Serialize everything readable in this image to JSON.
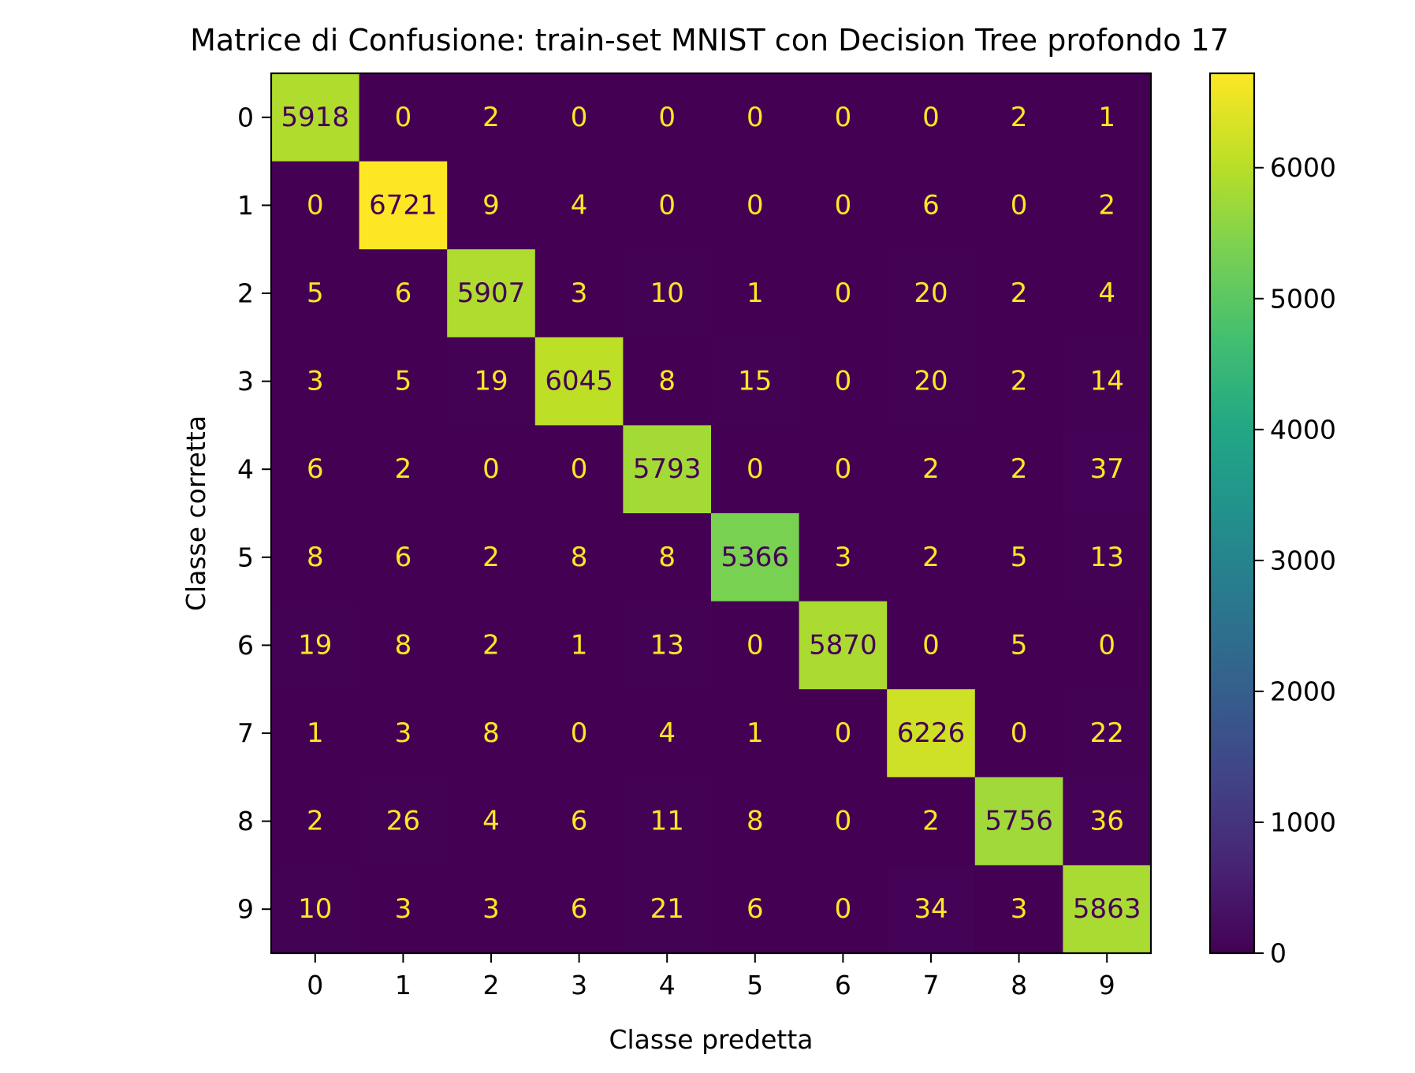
{
  "chart_data": {
    "type": "heatmap",
    "title": "Matrice di Confusione: train-set MNIST con Decision Tree profondo 17",
    "xlabel": "Classe predetta",
    "ylabel": "Classe corretta",
    "x_categories": [
      "0",
      "1",
      "2",
      "3",
      "4",
      "5",
      "6",
      "7",
      "8",
      "9"
    ],
    "y_categories": [
      "0",
      "1",
      "2",
      "3",
      "4",
      "5",
      "6",
      "7",
      "8",
      "9"
    ],
    "values": [
      [
        5918,
        0,
        2,
        0,
        0,
        0,
        0,
        0,
        2,
        1
      ],
      [
        0,
        6721,
        9,
        4,
        0,
        0,
        0,
        6,
        0,
        2
      ],
      [
        5,
        6,
        5907,
        3,
        10,
        1,
        0,
        20,
        2,
        4
      ],
      [
        3,
        5,
        19,
        6045,
        8,
        15,
        0,
        20,
        2,
        14
      ],
      [
        6,
        2,
        0,
        0,
        5793,
        0,
        0,
        2,
        2,
        37
      ],
      [
        8,
        6,
        2,
        8,
        8,
        5366,
        3,
        2,
        5,
        13
      ],
      [
        19,
        8,
        2,
        1,
        13,
        0,
        5870,
        0,
        5,
        0
      ],
      [
        1,
        3,
        8,
        0,
        4,
        1,
        0,
        6226,
        0,
        22
      ],
      [
        2,
        26,
        4,
        6,
        11,
        8,
        0,
        2,
        5756,
        36
      ],
      [
        10,
        3,
        3,
        6,
        21,
        6,
        0,
        34,
        3,
        5863
      ]
    ],
    "colormap": "viridis",
    "vmin": 0,
    "vmax": 6721,
    "colorbar": {
      "ticks": [
        0,
        1000,
        2000,
        3000,
        4000,
        5000,
        6000
      ],
      "tick_labels": [
        "0",
        "1000",
        "2000",
        "3000",
        "4000",
        "5000",
        "6000"
      ]
    },
    "grid": false,
    "legend": "none"
  }
}
